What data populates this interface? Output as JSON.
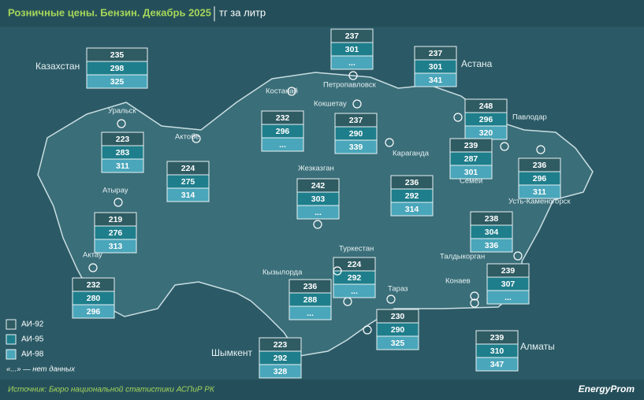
{
  "header": {
    "title": "Розничные цены. Бензин. Декабрь 2025",
    "unit": "тг за литр"
  },
  "regions": [
    {
      "name": "Казахстан",
      "prices": [
        "235",
        "298",
        "325"
      ]
    },
    {
      "name": "Петропавловск",
      "prices": [
        "237",
        "301",
        "..."
      ]
    },
    {
      "name": "Астана",
      "prices": [
        "237",
        "301",
        "341"
      ]
    },
    {
      "name": "Костанай",
      "prices": [
        "232",
        "296",
        "..."
      ]
    },
    {
      "name": "Кокшетау",
      "prices": [
        "237",
        "290",
        "339"
      ]
    },
    {
      "name": "Уральск",
      "prices": [
        "223",
        "283",
        "311"
      ]
    },
    {
      "name": "Актобе",
      "prices": [
        "224",
        "275",
        "314"
      ]
    },
    {
      "name": "Павлодар",
      "prices": [
        "248",
        "296",
        "320"
      ]
    },
    {
      "name": "Караганда",
      "prices": [
        "236",
        "292",
        "314"
      ]
    },
    {
      "name": "Семей",
      "prices": [
        "239",
        "287",
        "301"
      ]
    },
    {
      "name": "Жезказган",
      "prices": [
        "242",
        "303",
        "..."
      ]
    },
    {
      "name": "Усть-Каменогорск",
      "prices": [
        "236",
        "296",
        "311"
      ]
    },
    {
      "name": "Атырау",
      "prices": [
        "219",
        "276",
        "313"
      ]
    },
    {
      "name": "Актау",
      "prices": [
        "232",
        "280",
        "296"
      ]
    },
    {
      "name": "Талдыкорган",
      "prices": [
        "238",
        "304",
        "336"
      ]
    },
    {
      "name": "Туркестан",
      "prices": [
        "224",
        "292",
        "..."
      ]
    },
    {
      "name": "Кызылорда",
      "prices": [
        "236",
        "288",
        "..."
      ]
    },
    {
      "name": "Конаев",
      "prices": [
        "239",
        "307",
        "..."
      ]
    },
    {
      "name": "Тараз",
      "prices": [
        "230",
        "290",
        "325"
      ]
    },
    {
      "name": "Алматы",
      "prices": [
        "239",
        "310",
        "347"
      ]
    },
    {
      "name": "Шымкент",
      "prices": [
        "223",
        "292",
        "328"
      ]
    }
  ],
  "legend": {
    "items": [
      "АИ-92",
      "АИ-95",
      "АИ-98"
    ],
    "note": "«...» — нет данных"
  },
  "footer": {
    "source": "Источник: Бюро национальной статистики АСПиР РК",
    "brand": "EnergyProm"
  }
}
